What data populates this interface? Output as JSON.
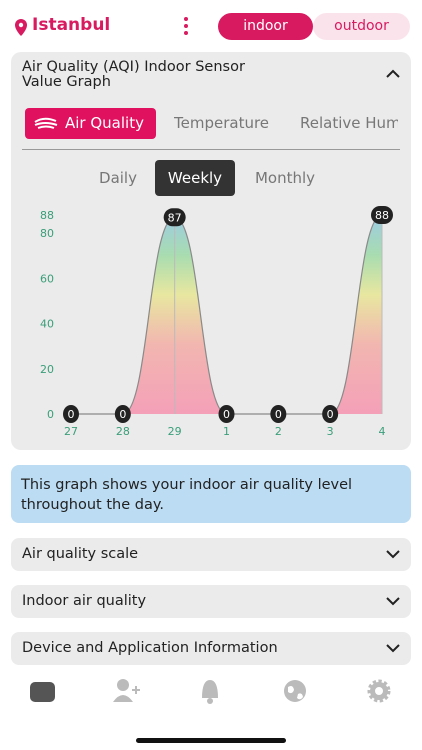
{
  "header": {
    "location": "Istanbul",
    "modes": [
      "indoor",
      "outdoor"
    ],
    "active_mode": 0
  },
  "card": {
    "title_lines": [
      "Air Quality (AQI) Indoor Sensor",
      "Value Graph"
    ],
    "tabs": [
      "Air Quality",
      "Temperature",
      "Relative Hum"
    ],
    "active_tab": 0,
    "periods": [
      "Daily",
      "Weekly",
      "Monthly"
    ],
    "active_period": 1
  },
  "chart_data": {
    "type": "line",
    "categories": [
      "27",
      "28",
      "29",
      "1",
      "2",
      "3",
      "4"
    ],
    "values": [
      0,
      0,
      87,
      0,
      0,
      0,
      88
    ],
    "ylim": [
      0,
      88
    ],
    "yticks": [
      0,
      20,
      40,
      60,
      80,
      88
    ],
    "color": "#8a8a8a"
  },
  "info": "This graph shows your indoor air quality level throughout the day.",
  "sections": [
    "Air quality scale",
    "Indoor air quality",
    "Device and Application Information"
  ]
}
